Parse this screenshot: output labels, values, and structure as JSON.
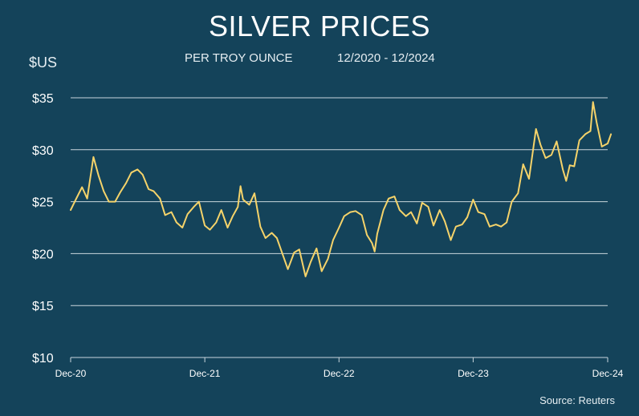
{
  "header": {
    "title": "SILVER PRICES",
    "subtitle_left": "PER TROY OUNCE",
    "subtitle_right": "12/2020 - 12/2024",
    "unit": "$US",
    "source": "Source: Reuters"
  },
  "colors": {
    "background": "#14435a",
    "line": "#f5d36a",
    "grid": "#c9d6dd",
    "text": "#ffffff"
  },
  "chart_data": {
    "type": "line",
    "title": "SILVER PRICES",
    "subtitle": "PER TROY OUNCE",
    "ylabel": "$US",
    "ylim": [
      10,
      35
    ],
    "xlim": [
      "2020-12",
      "2024-12"
    ],
    "grid": true,
    "y_ticks": [
      {
        "value": 10,
        "label": "$10"
      },
      {
        "value": 15,
        "label": "$15"
      },
      {
        "value": 20,
        "label": "$20"
      },
      {
        "value": 25,
        "label": "$25"
      },
      {
        "value": 30,
        "label": "$30"
      },
      {
        "value": 35,
        "label": "$35"
      }
    ],
    "x_ticks": [
      {
        "value": "2020-12",
        "label": "Dec-20"
      },
      {
        "value": "2021-12",
        "label": "Dec-21"
      },
      {
        "value": "2022-12",
        "label": "Dec-22"
      },
      {
        "value": "2023-12",
        "label": "Dec-23"
      },
      {
        "value": "2024-12",
        "label": "Dec-24"
      }
    ],
    "series": [
      {
        "color": "#f5d36a",
        "points": [
          [
            "2020-12-01",
            24.2
          ],
          [
            "2020-12-15",
            25.2
          ],
          [
            "2021-01-01",
            26.4
          ],
          [
            "2021-01-15",
            25.3
          ],
          [
            "2021-02-01",
            29.3
          ],
          [
            "2021-02-15",
            27.5
          ],
          [
            "2021-03-01",
            26.0
          ],
          [
            "2021-03-15",
            25.0
          ],
          [
            "2021-04-01",
            25.0
          ],
          [
            "2021-04-15",
            25.9
          ],
          [
            "2021-05-01",
            26.8
          ],
          [
            "2021-05-15",
            27.8
          ],
          [
            "2021-06-01",
            28.1
          ],
          [
            "2021-06-15",
            27.6
          ],
          [
            "2021-07-01",
            26.2
          ],
          [
            "2021-07-15",
            26.0
          ],
          [
            "2021-08-01",
            25.3
          ],
          [
            "2021-08-15",
            23.7
          ],
          [
            "2021-09-01",
            24.0
          ],
          [
            "2021-09-15",
            23.0
          ],
          [
            "2021-10-01",
            22.5
          ],
          [
            "2021-10-15",
            23.8
          ],
          [
            "2021-11-01",
            24.5
          ],
          [
            "2021-11-15",
            25.0
          ],
          [
            "2021-12-01",
            22.7
          ],
          [
            "2021-12-15",
            22.3
          ],
          [
            "2022-01-01",
            23.0
          ],
          [
            "2022-01-15",
            24.2
          ],
          [
            "2022-02-01",
            22.5
          ],
          [
            "2022-02-15",
            23.6
          ],
          [
            "2022-03-01",
            24.5
          ],
          [
            "2022-03-08",
            26.5
          ],
          [
            "2022-03-15",
            25.2
          ],
          [
            "2022-04-01",
            24.7
          ],
          [
            "2022-04-15",
            25.8
          ],
          [
            "2022-05-01",
            22.6
          ],
          [
            "2022-05-15",
            21.5
          ],
          [
            "2022-06-01",
            22.0
          ],
          [
            "2022-06-15",
            21.5
          ],
          [
            "2022-07-01",
            19.9
          ],
          [
            "2022-07-15",
            18.5
          ],
          [
            "2022-08-01",
            20.1
          ],
          [
            "2022-08-15",
            20.4
          ],
          [
            "2022-09-01",
            17.8
          ],
          [
            "2022-09-15",
            19.2
          ],
          [
            "2022-10-01",
            20.5
          ],
          [
            "2022-10-15",
            18.3
          ],
          [
            "2022-11-01",
            19.5
          ],
          [
            "2022-11-15",
            21.3
          ],
          [
            "2022-12-01",
            22.5
          ],
          [
            "2022-12-15",
            23.6
          ],
          [
            "2023-01-01",
            24.0
          ],
          [
            "2023-01-15",
            24.1
          ],
          [
            "2023-02-01",
            23.7
          ],
          [
            "2023-02-15",
            21.8
          ],
          [
            "2023-03-01",
            21.0
          ],
          [
            "2023-03-08",
            20.2
          ],
          [
            "2023-03-15",
            21.9
          ],
          [
            "2023-04-01",
            24.2
          ],
          [
            "2023-04-15",
            25.3
          ],
          [
            "2023-05-01",
            25.5
          ],
          [
            "2023-05-15",
            24.2
          ],
          [
            "2023-06-01",
            23.6
          ],
          [
            "2023-06-15",
            24.0
          ],
          [
            "2023-07-01",
            22.9
          ],
          [
            "2023-07-15",
            24.9
          ],
          [
            "2023-08-01",
            24.5
          ],
          [
            "2023-08-15",
            22.7
          ],
          [
            "2023-09-01",
            24.2
          ],
          [
            "2023-09-15",
            23.1
          ],
          [
            "2023-10-01",
            21.3
          ],
          [
            "2023-10-15",
            22.6
          ],
          [
            "2023-11-01",
            22.8
          ],
          [
            "2023-11-15",
            23.5
          ],
          [
            "2023-12-01",
            25.2
          ],
          [
            "2023-12-15",
            24.0
          ],
          [
            "2024-01-01",
            23.8
          ],
          [
            "2024-01-15",
            22.6
          ],
          [
            "2024-02-01",
            22.8
          ],
          [
            "2024-02-15",
            22.6
          ],
          [
            "2024-03-01",
            23.0
          ],
          [
            "2024-03-15",
            25.0
          ],
          [
            "2024-04-01",
            25.8
          ],
          [
            "2024-04-15",
            28.6
          ],
          [
            "2024-05-01",
            27.2
          ],
          [
            "2024-05-20",
            32.0
          ],
          [
            "2024-06-01",
            30.5
          ],
          [
            "2024-06-15",
            29.2
          ],
          [
            "2024-07-01",
            29.5
          ],
          [
            "2024-07-15",
            30.8
          ],
          [
            "2024-08-01",
            28.1
          ],
          [
            "2024-08-10",
            27.0
          ],
          [
            "2024-08-20",
            28.5
          ],
          [
            "2024-09-01",
            28.4
          ],
          [
            "2024-09-15",
            30.9
          ],
          [
            "2024-10-01",
            31.5
          ],
          [
            "2024-10-15",
            31.8
          ],
          [
            "2024-10-22",
            34.6
          ],
          [
            "2024-11-01",
            32.6
          ],
          [
            "2024-11-15",
            30.3
          ],
          [
            "2024-12-01",
            30.6
          ],
          [
            "2024-12-10",
            31.5
          ]
        ]
      }
    ]
  }
}
